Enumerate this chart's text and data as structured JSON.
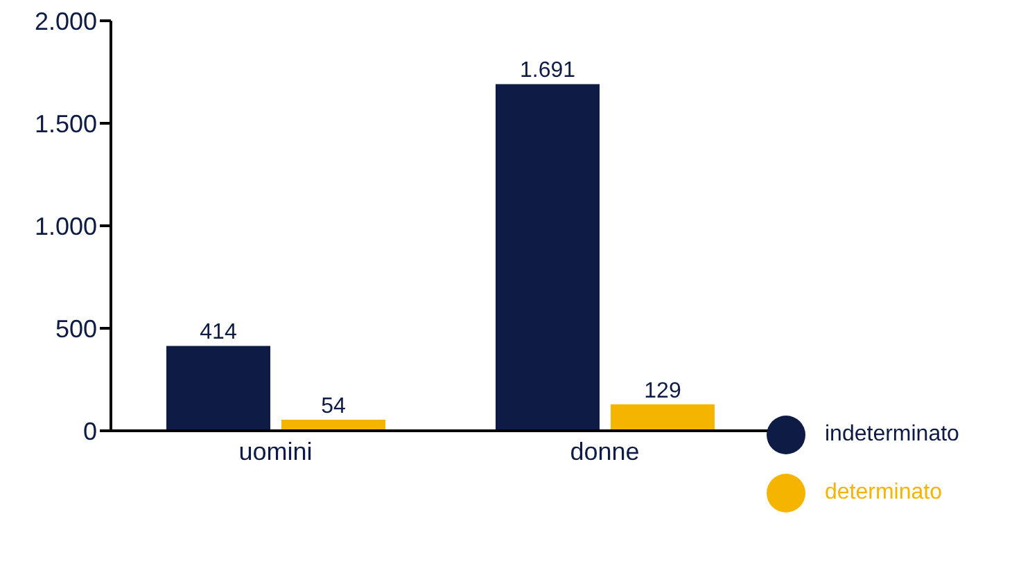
{
  "chart_data": {
    "type": "bar",
    "categories": [
      "uomini",
      "donne"
    ],
    "series": [
      {
        "name": "indeterminato",
        "color": "#0d1b45",
        "values": [
          414,
          1691
        ],
        "value_labels": [
          "414",
          "1.691"
        ]
      },
      {
        "name": "determinato",
        "color": "#f5b400",
        "values": [
          54,
          129
        ],
        "value_labels": [
          "54",
          "129"
        ]
      }
    ],
    "ylim": [
      0,
      2000
    ],
    "yticks": [
      {
        "value": 0,
        "label": "0"
      },
      {
        "value": 500,
        "label": "500"
      },
      {
        "value": 1000,
        "label": "1.000"
      },
      {
        "value": 1500,
        "label": "1.500"
      },
      {
        "value": 2000,
        "label": "2.000"
      }
    ],
    "grid": false,
    "legend": "right"
  }
}
